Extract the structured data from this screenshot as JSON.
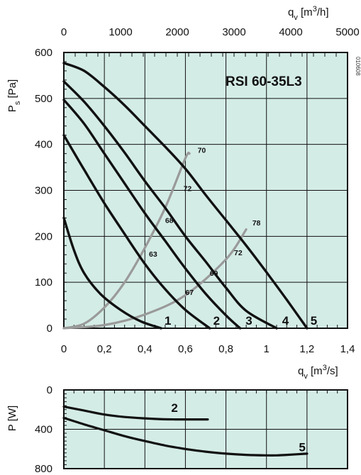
{
  "chart_data": [
    {
      "type": "line",
      "title": "RSI  60-35L3",
      "side_code": "010608",
      "xlabel": "qv [m3/s]",
      "xlabel_parts": {
        "base": "q",
        "sub": "v",
        "pre": "[m",
        "sup": "3",
        "post": "/s]"
      },
      "x2label_parts": {
        "base": "q",
        "sub": "v",
        "pre": "[m",
        "sup": "3",
        "post": "/h]"
      },
      "ylabel_parts": {
        "base": "P",
        "sub": "s",
        "unit": "[Pa]"
      },
      "xlim": [
        0,
        1.4
      ],
      "ylim": [
        0,
        600
      ],
      "x_ticks": [
        "0",
        "0,2",
        "0,4",
        "0,6",
        "0,8",
        "1",
        "1,2",
        "1,4"
      ],
      "x_tick_values": [
        0,
        0.2,
        0.4,
        0.6,
        0.8,
        1.0,
        1.2,
        1.4
      ],
      "x2lim": [
        0,
        5000
      ],
      "x2_ticks": [
        "0",
        "1000",
        "2000",
        "3000",
        "4000",
        "5000"
      ],
      "x2_tick_values": [
        0,
        1000,
        2000,
        3000,
        4000,
        5000
      ],
      "y_ticks": [
        "0",
        "100",
        "200",
        "300",
        "400",
        "500",
        "600"
      ],
      "y_tick_values": [
        0,
        100,
        200,
        300,
        400,
        500,
        600
      ],
      "grid": true,
      "background": "#d4ece6",
      "series": [
        {
          "name": "1",
          "points": [
            [
              0,
              240
            ],
            [
              0.05,
              170
            ],
            [
              0.1,
              120
            ],
            [
              0.18,
              75
            ],
            [
              0.28,
              40
            ],
            [
              0.38,
              15
            ],
            [
              0.48,
              0
            ]
          ],
          "label_at": [
            0.49,
            0
          ]
        },
        {
          "name": "2",
          "points": [
            [
              0,
              420
            ],
            [
              0.1,
              345
            ],
            [
              0.2,
              272
            ],
            [
              0.3,
              205
            ],
            [
              0.4,
              140
            ],
            [
              0.5,
              85
            ],
            [
              0.6,
              40
            ],
            [
              0.72,
              0
            ]
          ],
          "label_at": [
            0.73,
            0
          ]
        },
        {
          "name": "3",
          "points": [
            [
              0,
              497
            ],
            [
              0.1,
              445
            ],
            [
              0.2,
              380
            ],
            [
              0.3,
              315
            ],
            [
              0.4,
              250
            ],
            [
              0.5,
              190
            ],
            [
              0.6,
              130
            ],
            [
              0.7,
              75
            ],
            [
              0.8,
              28
            ],
            [
              0.87,
              0
            ]
          ],
          "label_at": [
            0.89,
            0
          ]
        },
        {
          "name": "4",
          "points": [
            [
              0,
              537
            ],
            [
              0.1,
              493
            ],
            [
              0.2,
              440
            ],
            [
              0.3,
              382
            ],
            [
              0.4,
              320
            ],
            [
              0.5,
              262
            ],
            [
              0.6,
              200
            ],
            [
              0.7,
              145
            ],
            [
              0.8,
              88
            ],
            [
              0.9,
              38
            ],
            [
              1.05,
              0
            ]
          ],
          "label_at": [
            1.07,
            0
          ]
        },
        {
          "name": "5",
          "points": [
            [
              0,
              577
            ],
            [
              0.1,
              560
            ],
            [
              0.2,
              525
            ],
            [
              0.3,
              485
            ],
            [
              0.4,
              440
            ],
            [
              0.5,
              395
            ],
            [
              0.6,
              347
            ],
            [
              0.7,
              290
            ],
            [
              0.8,
              235
            ],
            [
              0.9,
              180
            ],
            [
              1.0,
              122
            ],
            [
              1.1,
              62
            ],
            [
              1.2,
              0
            ]
          ],
          "label_at": [
            1.21,
            0
          ]
        }
      ],
      "efficiency_lines": [
        {
          "points": [
            [
              0,
              0
            ],
            [
              0.1,
              10
            ],
            [
              0.2,
              45
            ],
            [
              0.3,
              100
            ],
            [
              0.4,
              175
            ],
            [
              0.5,
              262
            ],
            [
              0.6,
              370
            ],
            [
              0.62,
              380
            ]
          ]
        },
        {
          "points": [
            [
              0,
              0
            ],
            [
              0.2,
              7
            ],
            [
              0.4,
              30
            ],
            [
              0.6,
              72
            ],
            [
              0.8,
              150
            ],
            [
              0.9,
              215
            ]
          ]
        }
      ],
      "efficiency_labels": [
        {
          "text": "70",
          "x": 0.66,
          "y": 388
        },
        {
          "text": "72",
          "x": 0.59,
          "y": 305
        },
        {
          "text": "68",
          "x": 0.5,
          "y": 235
        },
        {
          "text": "63",
          "x": 0.42,
          "y": 162
        },
        {
          "text": "78",
          "x": 0.93,
          "y": 230
        },
        {
          "text": "72",
          "x": 0.84,
          "y": 165
        },
        {
          "text": "69",
          "x": 0.72,
          "y": 120
        },
        {
          "text": "67",
          "x": 0.6,
          "y": 79
        }
      ]
    },
    {
      "type": "line",
      "ylabel_parts": {
        "base": "P",
        "unit": "[W]"
      },
      "xlim": [
        0,
        1.4
      ],
      "ylim": [
        0,
        800
      ],
      "y_inverted": true,
      "y_ticks": [
        "0",
        "400",
        "800"
      ],
      "y_tick_values": [
        0,
        400,
        800
      ],
      "grid": true,
      "background": "#d4ece6",
      "series": [
        {
          "name": "2",
          "points": [
            [
              0,
              170
            ],
            [
              0.1,
              210
            ],
            [
              0.2,
              250
            ],
            [
              0.3,
              275
            ],
            [
              0.45,
              295
            ],
            [
              0.55,
              300
            ],
            [
              0.71,
              300
            ]
          ],
          "label_at": [
            0.53,
            180
          ]
        },
        {
          "name": "5",
          "points": [
            [
              0,
              285
            ],
            [
              0.1,
              350
            ],
            [
              0.2,
              410
            ],
            [
              0.3,
              470
            ],
            [
              0.4,
              520
            ],
            [
              0.5,
              565
            ],
            [
              0.6,
              600
            ],
            [
              0.7,
              628
            ],
            [
              0.8,
              648
            ],
            [
              0.9,
              660
            ],
            [
              1.0,
              665
            ],
            [
              1.05,
              665
            ],
            [
              1.1,
              660
            ],
            [
              1.2,
              648
            ]
          ],
          "label_at": [
            1.16,
            580
          ]
        }
      ]
    }
  ]
}
